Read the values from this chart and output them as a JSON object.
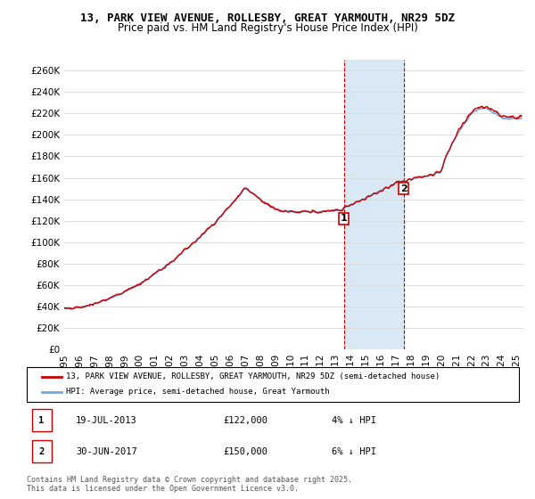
{
  "title": "13, PARK VIEW AVENUE, ROLLESBY, GREAT YARMOUTH, NR29 5DZ",
  "subtitle": "Price paid vs. HM Land Registry's House Price Index (HPI)",
  "ylabel_ticks": [
    "£0",
    "£20K",
    "£40K",
    "£60K",
    "£80K",
    "£100K",
    "£120K",
    "£140K",
    "£160K",
    "£180K",
    "£200K",
    "£220K",
    "£240K",
    "£260K"
  ],
  "ytick_vals": [
    0,
    20000,
    40000,
    60000,
    80000,
    100000,
    120000,
    140000,
    160000,
    180000,
    200000,
    220000,
    240000,
    260000
  ],
  "ylim": [
    0,
    270000
  ],
  "xlim_start": 1995.0,
  "xlim_end": 2025.5,
  "xtick_years": [
    1995,
    1996,
    1997,
    1998,
    1999,
    2000,
    2001,
    2002,
    2003,
    2004,
    2005,
    2006,
    2007,
    2008,
    2009,
    2010,
    2011,
    2012,
    2013,
    2014,
    2015,
    2016,
    2017,
    2018,
    2019,
    2020,
    2021,
    2022,
    2023,
    2024,
    2025
  ],
  "hpi_color": "#6fa8dc",
  "price_color": "#cc0000",
  "sale1_x": 2013.54,
  "sale1_y": 122000,
  "sale1_label": "1",
  "sale2_x": 2017.5,
  "sale2_y": 150000,
  "sale2_label": "2",
  "vline1_x": 2013.54,
  "vline2_x": 2017.5,
  "vline_color": "#cc0000",
  "shade_color": "#d9e8f5",
  "legend_price_label": "13, PARK VIEW AVENUE, ROLLESBY, GREAT YARMOUTH, NR29 5DZ (semi-detached house)",
  "legend_hpi_label": "HPI: Average price, semi-detached house, Great Yarmouth",
  "table_row1": [
    "1",
    "19-JUL-2013",
    "£122,000",
    "4% ↓ HPI"
  ],
  "table_row2": [
    "2",
    "30-JUN-2017",
    "£150,000",
    "6% ↓ HPI"
  ],
  "copyright_text": "Contains HM Land Registry data © Crown copyright and database right 2025.\nThis data is licensed under the Open Government Licence v3.0.",
  "bg_color": "#ffffff",
  "grid_color": "#dddddd"
}
